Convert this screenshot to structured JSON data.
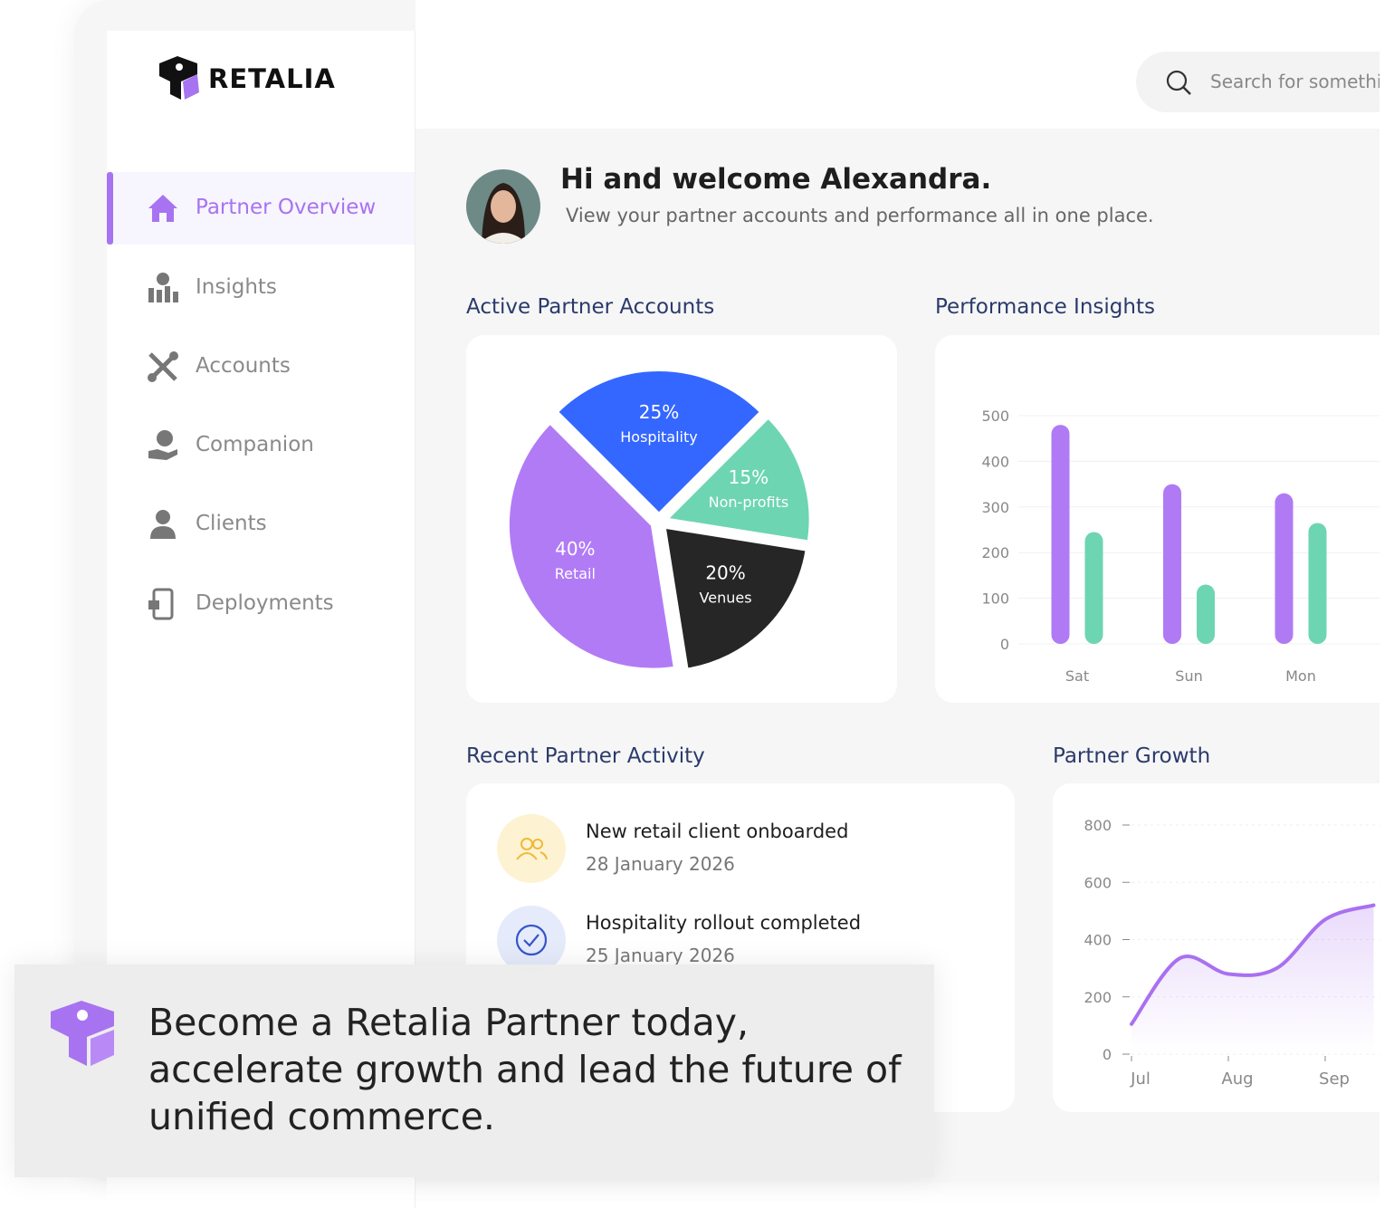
{
  "brand": "RETALIA",
  "search": {
    "placeholder": "Search for something"
  },
  "nav": {
    "items": [
      {
        "label": "Partner Overview",
        "active": true
      },
      {
        "label": "Insights"
      },
      {
        "label": "Accounts"
      },
      {
        "label": "Companion"
      },
      {
        "label": "Clients"
      },
      {
        "label": "Deployments"
      }
    ]
  },
  "welcome": {
    "title": "Hi and welcome Alexandra.",
    "subtitle": "View your partner accounts and performance all in one place."
  },
  "activity": {
    "title": "Recent Partner Activity",
    "items": [
      {
        "title": "New retail client onboarded",
        "date": "28 January 2026"
      },
      {
        "title": "Hospitality rollout completed",
        "date": "25 January 2026"
      }
    ]
  },
  "banner": {
    "lines": [
      "Become a Retalia Partner today,",
      "accelerate growth and lead the future of",
      "unified commerce."
    ]
  },
  "chart_data": [
    {
      "type": "pie",
      "title": "Active Partner Accounts",
      "categories": [
        "Hospitality",
        "Non-profits",
        "Venues",
        "Retail"
      ],
      "values": [
        25,
        15,
        20,
        40
      ],
      "value_labels": [
        "25%",
        "15%",
        "20%",
        "40%"
      ],
      "colors": [
        "#3467ff",
        "#6dd5b2",
        "#262626",
        "#b17bf6"
      ]
    },
    {
      "type": "bar",
      "title": "Performance Insights",
      "categories": [
        "Sat",
        "Sun",
        "Mon"
      ],
      "series": [
        {
          "color": "#b07af5",
          "values": [
            480,
            350,
            330
          ]
        },
        {
          "color": "#6dd5b2",
          "values": [
            245,
            130,
            265
          ]
        }
      ],
      "ylim": [
        0,
        500
      ],
      "yticks": [
        0,
        100,
        200,
        300,
        400,
        500
      ],
      "grid": true
    },
    {
      "type": "line",
      "title": "Partner Growth",
      "categories": [
        "Jul",
        null,
        "Aug",
        null,
        "Sep",
        null
      ],
      "values": [
        105,
        335,
        280,
        300,
        470,
        520
      ],
      "color": "#a970f0",
      "ylim": [
        0,
        800
      ],
      "yticks": [
        0,
        200,
        400,
        600,
        800
      ],
      "grid": true
    }
  ]
}
